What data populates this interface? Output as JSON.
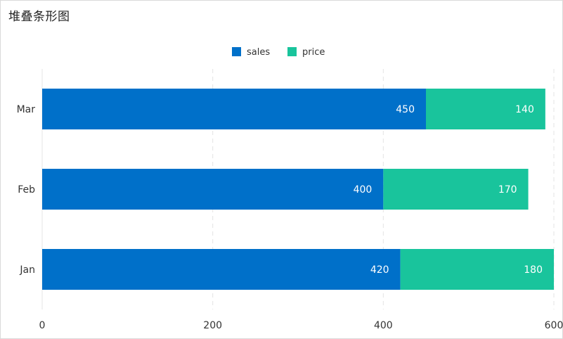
{
  "title": "堆叠条形图",
  "chart_data": {
    "type": "bar",
    "orientation": "horizontal",
    "stacked": true,
    "categories": [
      "Jan",
      "Feb",
      "Mar"
    ],
    "series": [
      {
        "name": "sales",
        "values": [
          420,
          400,
          450
        ],
        "color": "#0070c9"
      },
      {
        "name": "price",
        "values": [
          180,
          170,
          140
        ],
        "color": "#19c49c"
      }
    ],
    "xlim": [
      0,
      600
    ],
    "xticks": [
      0,
      200,
      400,
      600
    ],
    "grid": "vertical dashed",
    "legend_position": "top-center"
  }
}
